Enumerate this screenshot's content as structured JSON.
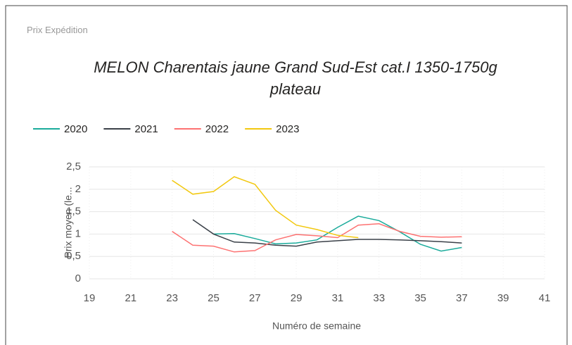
{
  "panel_label": "Prix Expédition",
  "chart_data": {
    "type": "line",
    "title": "MELON Charentais jaune Grand Sud-Est cat.I 1350-1750g plateau",
    "x_label": "Numéro de semaine",
    "y_label": "Prix moyen  (le...",
    "x": [
      23,
      24,
      25,
      26,
      27,
      28,
      29,
      30,
      31,
      32,
      33,
      34,
      35,
      36,
      37
    ],
    "series": [
      {
        "name": "2020",
        "color": "#1aab9b",
        "values": [
          null,
          null,
          1.0,
          1.01,
          0.9,
          0.78,
          0.8,
          0.87,
          1.15,
          1.4,
          1.3,
          1.05,
          0.77,
          0.62,
          0.7
        ]
      },
      {
        "name": "2021",
        "color": "#3a4048",
        "values": [
          null,
          1.32,
          1.0,
          0.82,
          0.8,
          0.75,
          0.73,
          0.82,
          0.85,
          0.88,
          0.88,
          0.87,
          0.85,
          0.83,
          0.8
        ]
      },
      {
        "name": "2022",
        "color": "#fd7272",
        "values": [
          1.06,
          0.75,
          0.73,
          0.6,
          0.63,
          0.87,
          0.99,
          0.96,
          0.92,
          1.2,
          1.23,
          1.06,
          0.95,
          0.93,
          0.94
        ]
      },
      {
        "name": "2023",
        "color": "#f2c80f",
        "values": [
          2.2,
          1.89,
          1.95,
          2.28,
          2.11,
          1.53,
          1.2,
          1.1,
          0.97,
          0.92,
          null,
          null,
          null,
          null,
          null
        ]
      }
    ],
    "xlim": [
      19,
      41
    ],
    "xticks": [
      19,
      21,
      23,
      25,
      27,
      29,
      31,
      33,
      35,
      37,
      39,
      41
    ],
    "ylim": [
      0,
      2.5
    ],
    "yticks": [
      0,
      {
        "value": 0.5,
        "label": "0,5"
      },
      1,
      {
        "value": 1.5,
        "label": "1,5"
      },
      2,
      {
        "value": 2.5,
        "label": "2,5"
      }
    ],
    "grid": true,
    "legend": "top-left"
  }
}
